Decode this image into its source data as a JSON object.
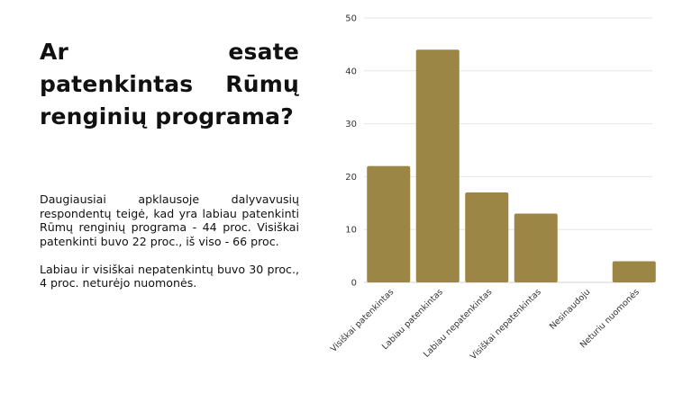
{
  "slide": {
    "title": "Ar esate patenkintas Rūmų renginių programa?",
    "paragraph1": "Daugiausiai apklausoje dalyvavusių respondentų teigė, kad yra labiau patenkinti Rūmų renginių programa - 44 proc. Visiškai patenkinti buvo 22 proc., iš viso - 66 proc.",
    "paragraph2": "Labiau ir visiškai nepatenkintų buvo 30 proc., 4 proc. neturėjo nuomonės."
  },
  "chart_data": {
    "type": "bar",
    "title": "",
    "xlabel": "",
    "ylabel": "",
    "categories": [
      "Visiškai patenkintas",
      "Labiau patenkintas",
      "Labiau nepatenkintas",
      "Visiškai nepatenkintas",
      "Nesinaudoju",
      "Neturiu nuomonės"
    ],
    "values": [
      22,
      44,
      17,
      13,
      0,
      4
    ],
    "ylim": [
      0,
      50
    ],
    "yticks": [
      0,
      10,
      20,
      30,
      40,
      50
    ],
    "grid": true,
    "legend": "none",
    "bar_color": "#9c8646",
    "grid_color": "#e6e6e6"
  }
}
